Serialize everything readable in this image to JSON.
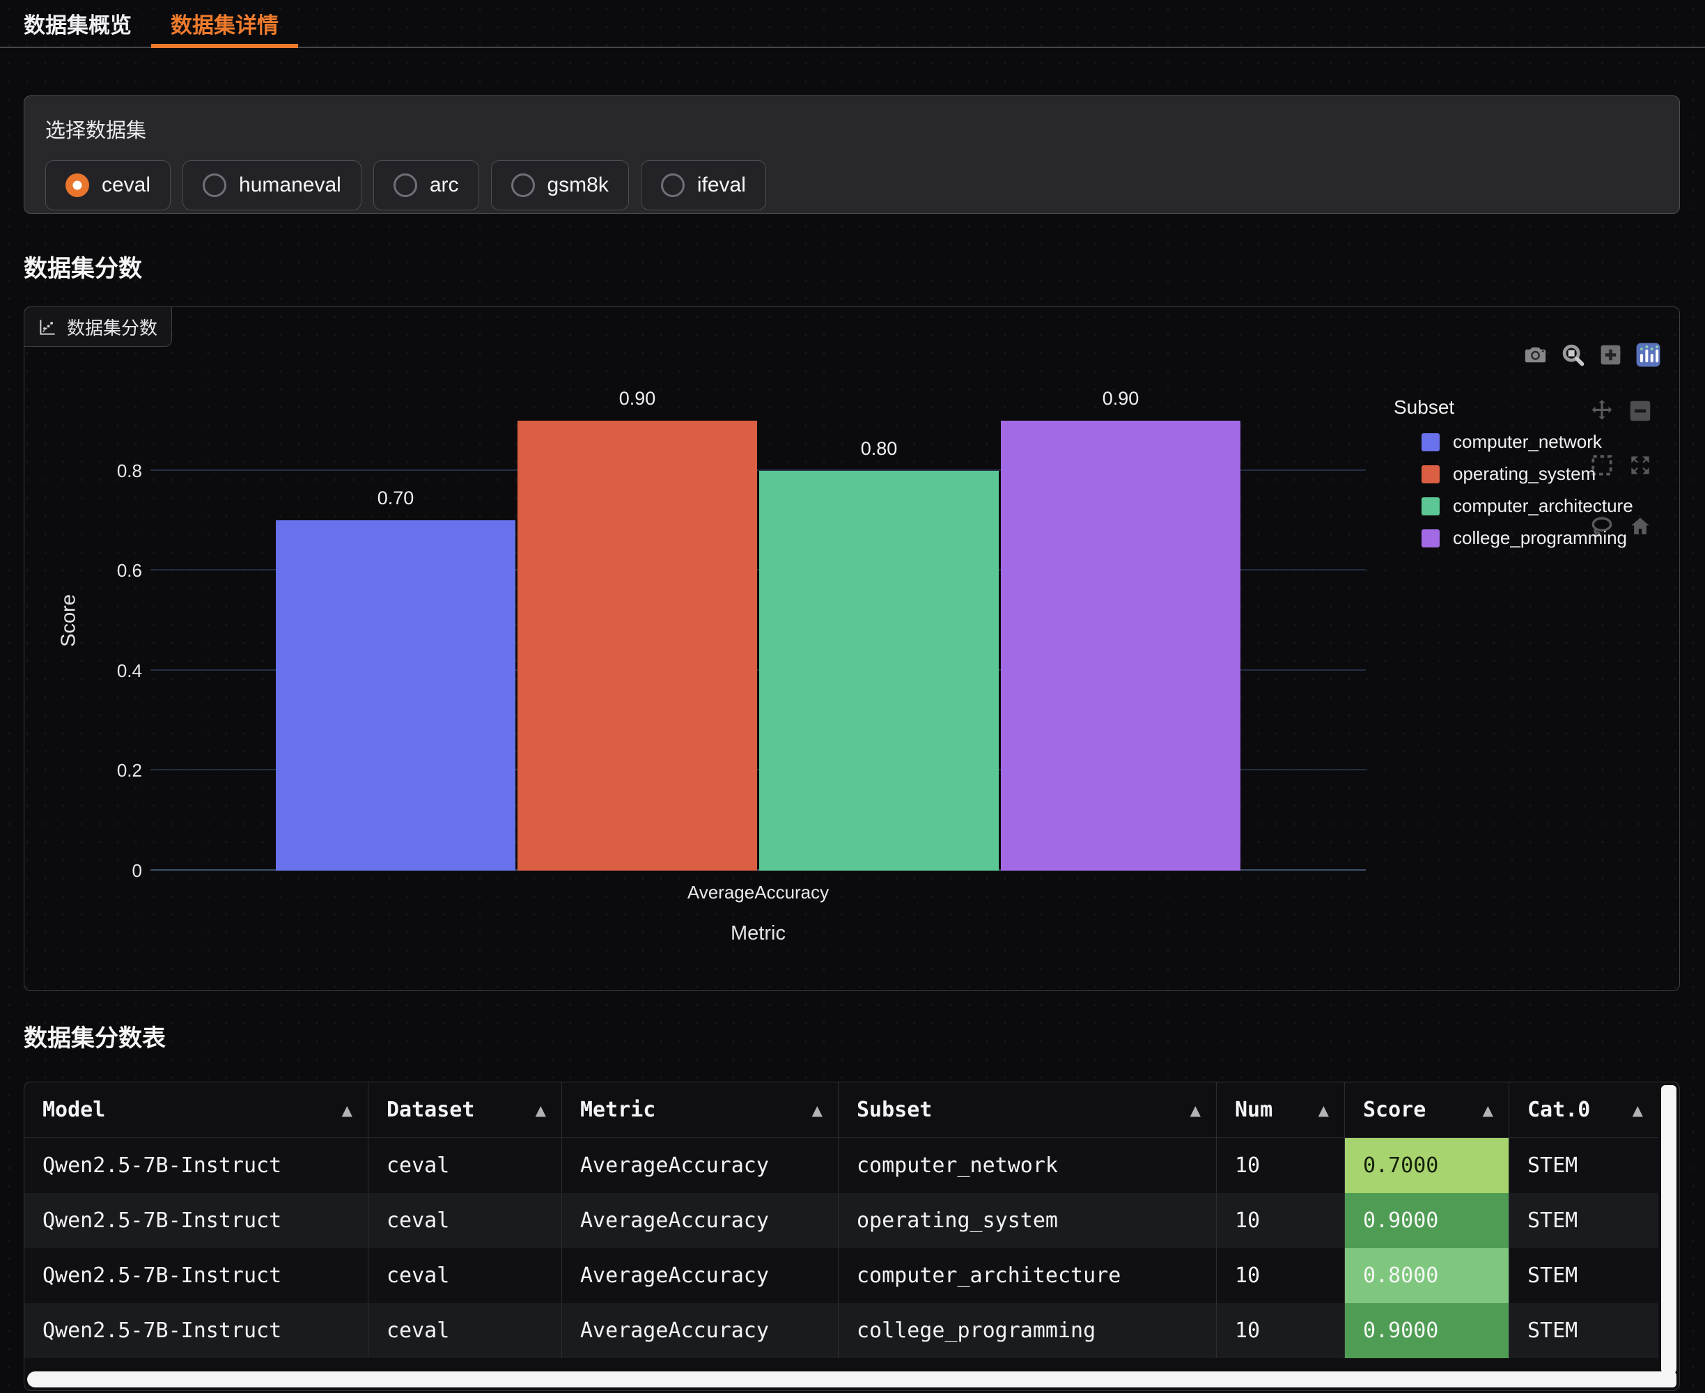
{
  "accent_color": "#ee7b2d",
  "tabs": [
    {
      "label": "数据集概览",
      "active": false
    },
    {
      "label": "数据集详情",
      "active": true
    }
  ],
  "selector": {
    "label": "选择数据集",
    "options": [
      {
        "label": "ceval",
        "selected": true
      },
      {
        "label": "humaneval",
        "selected": false
      },
      {
        "label": "arc",
        "selected": false
      },
      {
        "label": "gsm8k",
        "selected": false
      },
      {
        "label": "ifeval",
        "selected": false
      }
    ]
  },
  "sections": {
    "chart_title": "数据集分数",
    "table_title": "数据集分数表"
  },
  "plot_header": {
    "label": "数据集分数"
  },
  "modebar_icons": [
    "camera",
    "zoom",
    "zoom-in",
    "plotly-logo"
  ],
  "ghost_icons": [
    "pan",
    "zoom-out",
    "box-select",
    "autoscale",
    "lasso",
    "reset-home"
  ],
  "chart_data": {
    "type": "bar",
    "title": "数据集分数",
    "categories": [
      "AverageAccuracy"
    ],
    "xlabel": "Metric",
    "ylabel": "Score",
    "ylim": [
      0,
      1.0
    ],
    "yticks": [
      0,
      0.2,
      0.4,
      0.6,
      0.8
    ],
    "grid": true,
    "legend_title": "Subset",
    "legend_position": "right",
    "series": [
      {
        "name": "computer_network",
        "color": "#6a71ec",
        "values": [
          0.7
        ],
        "label": "0.70"
      },
      {
        "name": "operating_system",
        "color": "#db5f42",
        "values": [
          0.9
        ],
        "label": "0.90"
      },
      {
        "name": "computer_architecture",
        "color": "#5cc795",
        "values": [
          0.8
        ],
        "label": "0.80"
      },
      {
        "name": "college_programming",
        "color": "#a26ae5",
        "values": [
          0.9
        ],
        "label": "0.90"
      }
    ]
  },
  "table": {
    "columns": [
      "Model",
      "Dataset",
      "Metric",
      "Subset",
      "Num",
      "Score",
      "Cat.0"
    ],
    "sort_icon": "▲",
    "rows": [
      {
        "cells": [
          "Qwen2.5-7B-Instruct",
          "ceval",
          "AverageAccuracy",
          "computer_network",
          "10",
          "0.7000",
          "STEM"
        ],
        "score_bg": "#a7d46e",
        "score_fg": "#15200b"
      },
      {
        "cells": [
          "Qwen2.5-7B-Instruct",
          "ceval",
          "AverageAccuracy",
          "operating_system",
          "10",
          "0.9000",
          "STEM"
        ],
        "score_bg": "#4f9d54",
        "score_fg": "#f4f7f4"
      },
      {
        "cells": [
          "Qwen2.5-7B-Instruct",
          "ceval",
          "AverageAccuracy",
          "computer_architecture",
          "10",
          "0.8000",
          "STEM"
        ],
        "score_bg": "#7fc77e",
        "score_fg": "#f4f7f4"
      },
      {
        "cells": [
          "Qwen2.5-7B-Instruct",
          "ceval",
          "AverageAccuracy",
          "college_programming",
          "10",
          "0.9000",
          "STEM"
        ],
        "score_bg": "#4f9d54",
        "score_fg": "#f4f7f4"
      }
    ]
  }
}
